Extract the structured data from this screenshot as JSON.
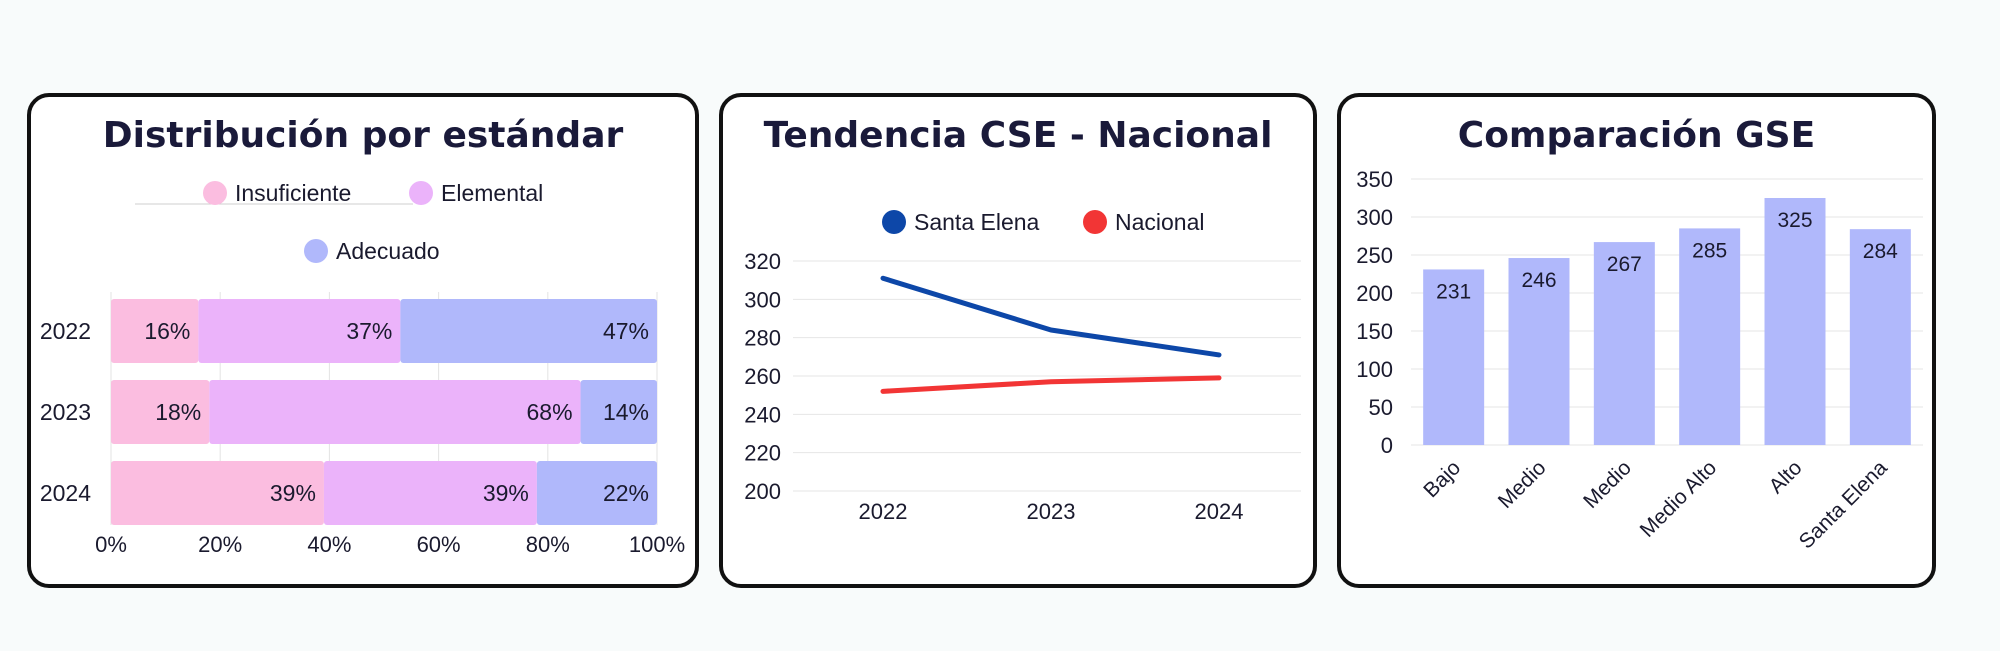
{
  "colors": {
    "insuficiente": "#fbbde0",
    "elemental": "#ebb3fa",
    "adecuado": "#b0b8fb",
    "santa_elena": "#0d47a8",
    "nacional": "#f23535",
    "bar": "#b0b8fb"
  },
  "chart_data": [
    {
      "type": "bar",
      "orientation": "horizontal",
      "stacked": true,
      "title": "Distribución por estándar",
      "categories": [
        "2022",
        "2023",
        "2024"
      ],
      "series": [
        {
          "name": "Insuficiente",
          "values": [
            16,
            18,
            39
          ],
          "labels": [
            "16%",
            "18%",
            "39%"
          ]
        },
        {
          "name": "Elemental",
          "values": [
            37,
            68,
            39
          ],
          "labels": [
            "37%",
            "68%",
            "39%"
          ]
        },
        {
          "name": "Adecuado",
          "values": [
            47,
            14,
            22
          ],
          "labels": [
            "47%",
            "14%",
            "22%"
          ]
        }
      ],
      "xlim": [
        0,
        100
      ],
      "xticks": [
        "0%",
        "20%",
        "40%",
        "60%",
        "80%",
        "100%"
      ],
      "legend": "top",
      "grid": true
    },
    {
      "type": "line",
      "title": "Tendencia CSE - Nacional",
      "x": [
        "2022",
        "2023",
        "2024"
      ],
      "series": [
        {
          "name": "Santa Elena",
          "values": [
            311,
            284,
            271
          ]
        },
        {
          "name": "Nacional",
          "values": [
            252,
            257,
            259
          ]
        }
      ],
      "ylim": [
        200,
        320
      ],
      "yticks": [
        "200",
        "220",
        "240",
        "260",
        "280",
        "300",
        "320"
      ],
      "legend": "top",
      "grid": true
    },
    {
      "type": "bar",
      "title": "Comparación GSE",
      "categories": [
        "Bajo",
        "Medio",
        "Medio",
        "Medio Alto",
        "Alto",
        "Santa Elena"
      ],
      "values": [
        231,
        246,
        267,
        285,
        325,
        284
      ],
      "value_labels": [
        "231",
        "246",
        "267",
        "285",
        "325",
        "284"
      ],
      "ylim": [
        0,
        350
      ],
      "yticks": [
        "0",
        "50",
        "100",
        "150",
        "200",
        "250",
        "300",
        "350"
      ],
      "grid": true
    }
  ]
}
